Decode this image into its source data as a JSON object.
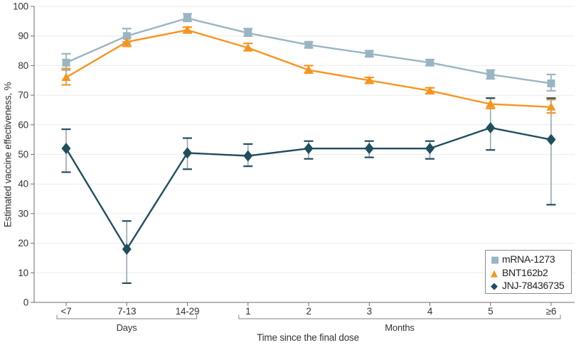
{
  "figure": {
    "y_axis_title": "Estimated vaccine effectiveness, %",
    "x_axis_title": "Time since the final dose"
  },
  "chart_data": {
    "type": "line",
    "title": "",
    "categories": [
      "<7",
      "7-13",
      "14-29",
      "1",
      "2",
      "3",
      "4",
      "5",
      "≥6"
    ],
    "category_groups": [
      {
        "label": "Days",
        "from": 0,
        "to": 2
      },
      {
        "label": "Months",
        "from": 3,
        "to": 8
      }
    ],
    "xlabel": "Time since the final dose",
    "ylabel": "Estimated vaccine effectiveness, %",
    "ylim": [
      0,
      100
    ],
    "y_ticks": [
      0,
      10,
      20,
      30,
      40,
      50,
      60,
      70,
      80,
      90,
      100
    ],
    "grid": true,
    "legend_position": "bottom-right",
    "axis_color": "#6E6E6E",
    "grid_color": "#ECECEC",
    "text_color": "#333333",
    "error_bar_color": "#9AA7AD",
    "bracket_color": "#9A9A9A",
    "series": [
      {
        "name": "mRNA-1273",
        "marker": "square",
        "color": "#99B5C4",
        "values": [
          81,
          90,
          96,
          91,
          87,
          84,
          81,
          77,
          74
        ],
        "ci_low": [
          78.5,
          88,
          95,
          90,
          86,
          83,
          80,
          75.5,
          71.5
        ],
        "ci_high": [
          84,
          92.5,
          97.5,
          92.5,
          88,
          85,
          82,
          78.5,
          77
        ]
      },
      {
        "name": "BNT162b2",
        "marker": "triangle",
        "color": "#F7941E",
        "values": [
          76,
          88,
          92,
          86,
          78.5,
          75,
          71.5,
          67,
          66
        ],
        "ci_low": [
          73.5,
          86.5,
          91,
          85,
          77.5,
          74,
          70.5,
          65.5,
          64
        ],
        "ci_high": [
          79,
          89.5,
          93,
          87.5,
          80,
          76,
          72.5,
          69,
          68.5
        ]
      },
      {
        "name": "JNJ-78436735",
        "marker": "diamond",
        "color": "#204E5E",
        "values": [
          52,
          18,
          50.5,
          49.5,
          52,
          52,
          52,
          59,
          55
        ],
        "ci_low": [
          44,
          6.5,
          45,
          46,
          48.5,
          49,
          48.5,
          51.5,
          33
        ],
        "ci_high": [
          58.5,
          27.5,
          55.5,
          53.5,
          54.5,
          54.5,
          54.5,
          69,
          69
        ]
      }
    ]
  }
}
